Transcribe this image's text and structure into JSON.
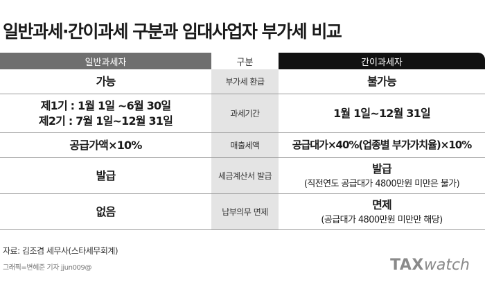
{
  "title": "일반과세·간이과세 구분과 임대사업자 부가세 비교",
  "headers": {
    "left": "일반과세자",
    "middle": "구분",
    "right": "간이과세자"
  },
  "rows": [
    {
      "category": "부가세 환급",
      "general": [
        "가능"
      ],
      "simplified": [
        "불가능"
      ],
      "simplified_note": ""
    },
    {
      "category": "과세기간",
      "general": [
        "제1기 : 1월 1일 ~6월 30일",
        "제2기 : 7월 1일~12월 31일"
      ],
      "simplified": [
        "1월 1일~12월 31일"
      ],
      "simplified_note": ""
    },
    {
      "category": "매출세액",
      "general": [
        "공급가액×10%"
      ],
      "simplified": [
        "공급대가×40%(업종별 부가가치율)×10%"
      ],
      "simplified_note": ""
    },
    {
      "category": "세금계산서 발급",
      "general": [
        "발급"
      ],
      "simplified": [
        "발급"
      ],
      "simplified_note": "(직전연도 공급대가 4800만원 미만은 불가)"
    },
    {
      "category": "납부의무 면제",
      "general": [
        "없음"
      ],
      "simplified": [
        "면제"
      ],
      "simplified_note": "(공급대가 4800만원 미만만 해당)"
    }
  ],
  "source": "자료: 김조겸 세무사(스타세무회계)",
  "credit": "그래픽=변혜준 기자 jjun009@",
  "logo": {
    "part1": "TAX",
    "part2": "watch"
  },
  "colors": {
    "left_header_bg": "#6f6f6f",
    "right_header_bg": "#111111",
    "middle_column_bg": "#e4e4e4",
    "logo": "#8a8a8a"
  }
}
